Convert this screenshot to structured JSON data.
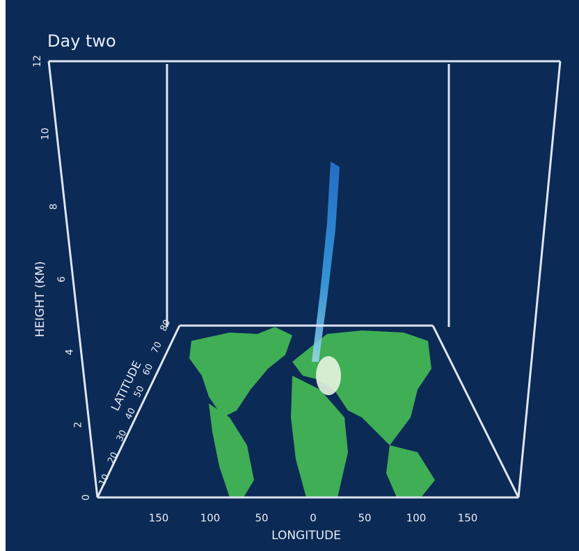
{
  "title": "Day two",
  "height_axis": {
    "label": "HEIGHT (KM)",
    "ticks": [
      "0",
      "2",
      "4",
      "6",
      "8",
      "10",
      "12"
    ]
  },
  "longitude_axis": {
    "label": "LONGITUDE",
    "ticks": [
      "150",
      "100",
      "50",
      "0",
      "50",
      "100",
      "150"
    ]
  },
  "latitude_axis": {
    "label": "LATITUDE",
    "ticks": [
      "10",
      "20",
      "30",
      "40",
      "50",
      "60",
      "70",
      "80"
    ]
  }
}
